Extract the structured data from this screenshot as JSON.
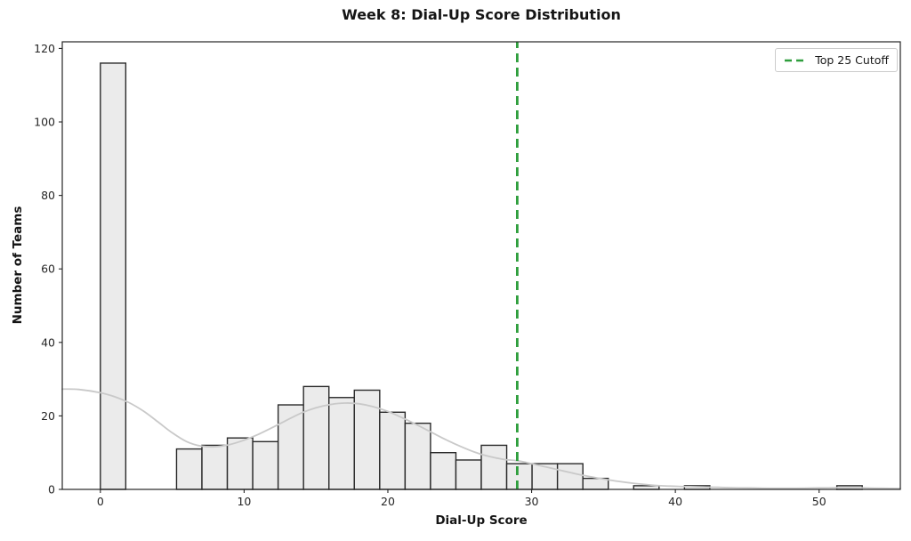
{
  "chart_data": {
    "type": "bar",
    "title": "Week 8: Dial-Up Score Distribution",
    "xlabel": "Dial-Up Score",
    "ylabel": "Number of Teams",
    "bin_start": 0,
    "bin_width": 1.7666667,
    "counts": [
      116,
      0,
      0,
      11,
      12,
      14,
      13,
      23,
      28,
      25,
      27,
      21,
      18,
      10,
      8,
      12,
      7,
      7,
      7,
      3,
      0,
      1,
      0,
      1,
      0,
      0,
      0,
      0,
      0,
      1
    ],
    "kde_overlay": [
      [
        -2.65,
        27.3
      ],
      [
        -1.5,
        27.2
      ],
      [
        0,
        26.3
      ],
      [
        1,
        25.2
      ],
      [
        2,
        23.6
      ],
      [
        3,
        21.3
      ],
      [
        4,
        18.4
      ],
      [
        5,
        15.4
      ],
      [
        6,
        13.0
      ],
      [
        7,
        11.8
      ],
      [
        8,
        11.6
      ],
      [
        9,
        12.2
      ],
      [
        10,
        13.4
      ],
      [
        11,
        15.0
      ],
      [
        12,
        16.9
      ],
      [
        13,
        18.9
      ],
      [
        14,
        20.8
      ],
      [
        15,
        22.2
      ],
      [
        16,
        23.1
      ],
      [
        17,
        23.5
      ],
      [
        18,
        23.3
      ],
      [
        19,
        22.5
      ],
      [
        20,
        21.2
      ],
      [
        21,
        19.5
      ],
      [
        22,
        17.6
      ],
      [
        23,
        15.6
      ],
      [
        24,
        13.6
      ],
      [
        25,
        11.8
      ],
      [
        26,
        10.2
      ],
      [
        27,
        9.0
      ],
      [
        28,
        8.2
      ],
      [
        29,
        7.8
      ],
      [
        30,
        7.0
      ],
      [
        31,
        6.1
      ],
      [
        32,
        5.2
      ],
      [
        33,
        4.3
      ],
      [
        34,
        3.5
      ],
      [
        35,
        2.8
      ],
      [
        36,
        2.2
      ],
      [
        37,
        1.7
      ],
      [
        38,
        1.3
      ],
      [
        39,
        1.0
      ],
      [
        40,
        0.85
      ],
      [
        41,
        0.75
      ],
      [
        42,
        0.65
      ],
      [
        43,
        0.55
      ],
      [
        44,
        0.45
      ],
      [
        45,
        0.4
      ],
      [
        46,
        0.35
      ],
      [
        47,
        0.3
      ],
      [
        48,
        0.3
      ],
      [
        49,
        0.35
      ],
      [
        50,
        0.4
      ],
      [
        51,
        0.45
      ],
      [
        52,
        0.45
      ],
      [
        53,
        0.4
      ],
      [
        54.5,
        0.3
      ],
      [
        55.65,
        0.25
      ]
    ],
    "cutoff": {
      "x": 29,
      "label": "Top 25 Cutoff"
    },
    "xlim": [
      -2.65,
      55.65
    ],
    "ylim": [
      0,
      121.8
    ],
    "x_ticks": [
      0,
      10,
      20,
      30,
      40,
      50
    ],
    "y_ticks": [
      0,
      20,
      40,
      60,
      80,
      100,
      120
    ],
    "grid": false,
    "legend_position": "upper right",
    "colors": {
      "bar_fill": "#ebebeb",
      "bar_edge": "#2a2a2a",
      "kde_line": "#c9c9c9",
      "cutoff_green": "#2e9e3c",
      "spine": "#262626",
      "tick_text": "#262626"
    }
  }
}
